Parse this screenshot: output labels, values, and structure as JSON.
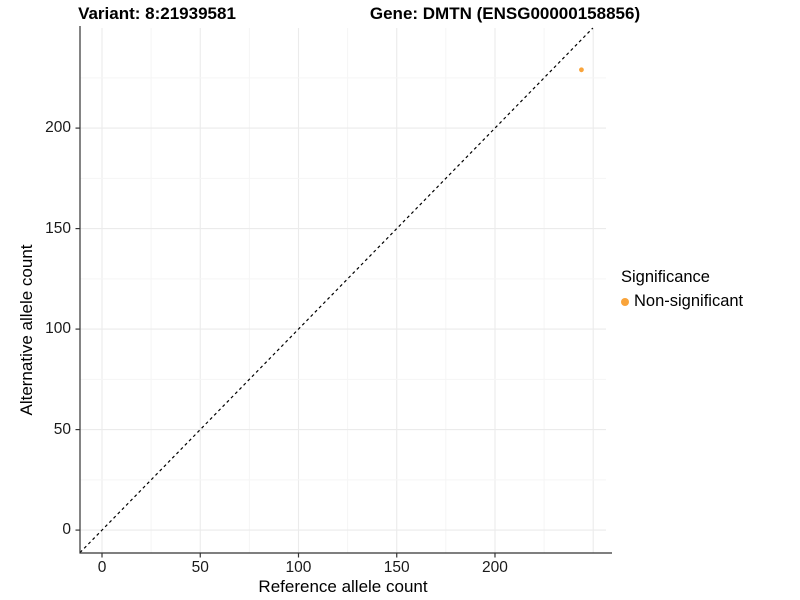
{
  "header": {
    "title_left": "Variant: 8:21939581",
    "title_right": "Gene: DMTN (ENSG00000158856)"
  },
  "chart_data": {
    "type": "scatter",
    "title_left": "Variant: 8:21939581",
    "title_right": "Gene: DMTN (ENSG00000158856)",
    "xlabel": "Reference allele count",
    "ylabel": "Alternative allele count",
    "x_ticks": [
      0,
      50,
      100,
      150,
      200
    ],
    "y_ticks": [
      0,
      50,
      100,
      150,
      200
    ],
    "xlim": [
      -11.2,
      256.5
    ],
    "ylim": [
      -11.4,
      249.8
    ],
    "grid": true,
    "grid_step_minor": 25,
    "grid_step_major": 50,
    "points": [
      {
        "x": 244,
        "y": 229,
        "significance": "Non-significant"
      }
    ],
    "reference_line": {
      "slope": 1,
      "intercept": 0,
      "style": "dashed"
    },
    "legend": {
      "title": "Significance",
      "position": "right",
      "entries": [
        {
          "label": "Non-significant",
          "color": "#F9A43B"
        }
      ]
    },
    "colors": {
      "point_non_significant": "#F9A43B",
      "grid_major": "#EBEBEB",
      "grid_minor": "#F5F5F5",
      "axis_line": "#333333",
      "reference_line": "#000000"
    }
  }
}
